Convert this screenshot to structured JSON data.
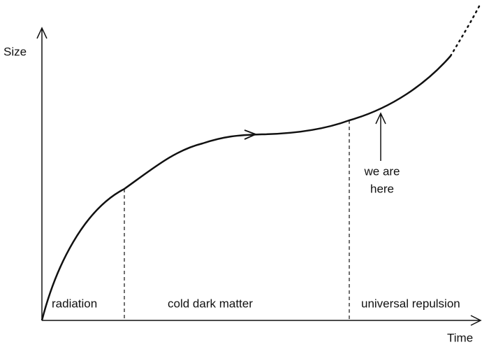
{
  "axes": {
    "y_label": "Size",
    "x_label": "Time"
  },
  "eras": [
    "radiation",
    "cold dark matter",
    "universal repulsion"
  ],
  "annotation": {
    "lines": [
      "we are",
      "here"
    ]
  }
}
